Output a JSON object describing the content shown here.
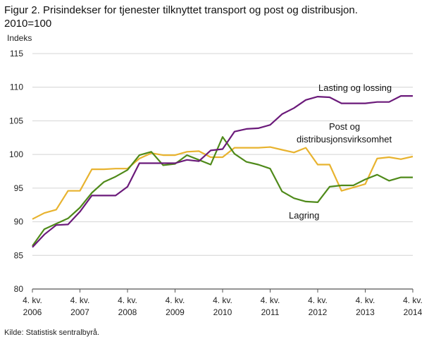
{
  "figure": {
    "title_line1": "Figur 2. Prisindekser for tjenester tilknyttet transport og post og distribusjon.",
    "title_line2": "2010=100",
    "source": "Kilde: Statistisk sentralbyrå."
  },
  "chart_data": {
    "type": "line",
    "ylabel": "Indeks",
    "ylim": [
      80,
      115
    ],
    "yticks": [
      80,
      85,
      90,
      95,
      100,
      105,
      110,
      115
    ],
    "grid": "horizontal",
    "x_tick_labels": [
      {
        "quarter": "4. kv.",
        "year": "2006"
      },
      {
        "quarter": "4. kv.",
        "year": "2007"
      },
      {
        "quarter": "4. kv.",
        "year": "2008"
      },
      {
        "quarter": "4. kv.",
        "year": "2009"
      },
      {
        "quarter": "4. kv.",
        "year": "2010"
      },
      {
        "quarter": "4. kv.",
        "year": "2011"
      },
      {
        "quarter": "4. kv.",
        "year": "2012"
      },
      {
        "quarter": "4. kv.",
        "year": "2013"
      },
      {
        "quarter": "4. kv.",
        "year": "2014"
      }
    ],
    "x": [
      "4. kv. 2006",
      "1. kv. 2007",
      "2. kv. 2007",
      "3. kv. 2007",
      "4. kv. 2007",
      "1. kv. 2008",
      "2. kv. 2008",
      "3. kv. 2008",
      "4. kv. 2008",
      "1. kv. 2009",
      "2. kv. 2009",
      "3. kv. 2009",
      "4. kv. 2009",
      "1. kv. 2010",
      "2. kv. 2010",
      "3. kv. 2010",
      "4. kv. 2010",
      "1. kv. 2011",
      "2. kv. 2011",
      "3. kv. 2011",
      "4. kv. 2011",
      "1. kv. 2012",
      "2. kv. 2012",
      "3. kv. 2012",
      "4. kv. 2012",
      "1. kv. 2013",
      "2. kv. 2013",
      "3. kv. 2013",
      "4. kv. 2013",
      "1. kv. 2014",
      "2. kv. 2014",
      "3. kv. 2014",
      "4. kv. 2014"
    ],
    "series": [
      {
        "name": "Lasting og lossing",
        "color": "#6b1a7a",
        "values": [
          86.2,
          88.1,
          89.5,
          89.6,
          91.5,
          93.9,
          93.9,
          93.9,
          95.2,
          98.7,
          98.7,
          98.7,
          98.7,
          99.2,
          99.0,
          100.6,
          100.8,
          103.4,
          103.8,
          103.9,
          104.4,
          106.0,
          106.9,
          108.1,
          108.6,
          108.5,
          107.6,
          107.6,
          107.6,
          107.8,
          107.8,
          108.7,
          108.7
        ]
      },
      {
        "name": "Post og distribusjonsvirksomhet",
        "color": "#e8b32f",
        "values": [
          90.4,
          91.3,
          91.8,
          94.6,
          94.6,
          97.8,
          97.8,
          97.9,
          97.9,
          99.4,
          100.2,
          99.9,
          99.9,
          100.4,
          100.5,
          99.6,
          99.6,
          101.0,
          101.0,
          101.0,
          101.1,
          100.7,
          100.3,
          101.0,
          98.5,
          98.5,
          94.6,
          95.1,
          95.6,
          99.4,
          99.6,
          99.3,
          99.7
        ]
      },
      {
        "name": "Lagring",
        "color": "#4f8a1a",
        "values": [
          86.4,
          88.9,
          89.7,
          90.5,
          92.1,
          94.3,
          95.9,
          96.7,
          97.7,
          99.9,
          100.4,
          98.4,
          98.6,
          99.9,
          99.2,
          98.5,
          102.6,
          100.1,
          98.9,
          98.5,
          97.9,
          94.5,
          93.5,
          93.0,
          92.9,
          95.2,
          95.4,
          95.4,
          96.3,
          97.0,
          96.1,
          96.6,
          96.6
        ]
      }
    ],
    "annotations": [
      {
        "text": "Lasting og lossing",
        "series": "Lasting og lossing"
      },
      {
        "text": "Post og",
        "series": "Post og distribusjonsvirksomhet"
      },
      {
        "text": "distribusjonsvirksomhet",
        "series": "Post og distribusjonsvirksomhet"
      },
      {
        "text": "Lagring",
        "series": "Lagring"
      }
    ]
  }
}
